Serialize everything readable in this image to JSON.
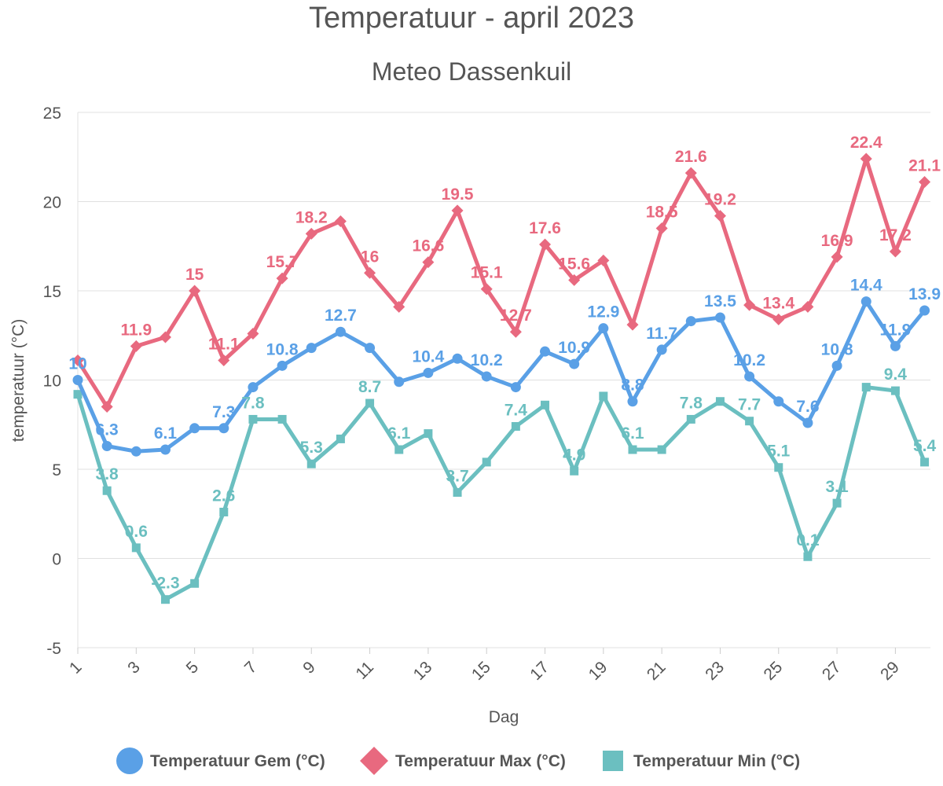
{
  "chart_data": {
    "type": "line",
    "title": "Temperatuur - april 2023",
    "subtitle": "Meteo Dassenkuil",
    "xlabel": "Dag",
    "ylabel": "temperatuur (°C)",
    "ylim": [
      -5,
      25
    ],
    "yticks": [
      "25",
      "20",
      "15",
      "10",
      "5",
      "0",
      "-5"
    ],
    "xticks": [
      "1",
      "3",
      "5",
      "7",
      "9",
      "11",
      "13",
      "15",
      "17",
      "19",
      "21",
      "23",
      "25",
      "27",
      "29"
    ],
    "x": [
      1,
      2,
      3,
      4,
      5,
      6,
      7,
      8,
      9,
      10,
      11,
      12,
      13,
      14,
      15,
      16,
      17,
      18,
      19,
      20,
      21,
      22,
      23,
      24,
      25,
      26,
      27,
      28,
      29,
      30
    ],
    "grid": true,
    "legend_position": "bottom",
    "series": [
      {
        "name": "Temperatuur Gem (°C)",
        "color": "#5aa0e6",
        "marker": "circle",
        "values": [
          10,
          6.3,
          6.0,
          6.1,
          7.3,
          7.3,
          9.6,
          10.8,
          11.8,
          12.7,
          11.8,
          9.9,
          10.4,
          11.2,
          10.2,
          9.6,
          11.6,
          10.9,
          12.9,
          8.8,
          11.7,
          13.3,
          13.5,
          10.2,
          8.8,
          7.6,
          10.8,
          14.4,
          11.9,
          13.9
        ],
        "labels": [
          "10",
          "6.3",
          "",
          "6.1",
          "",
          "7.3",
          "",
          "10.8",
          "",
          "12.7",
          "",
          "",
          "10.4",
          "",
          "10.2",
          "",
          "",
          "10.9",
          "12.9",
          "8.8",
          "11.7",
          "",
          "13.5",
          "10.2",
          "",
          "7.6",
          "10.8",
          "14.4",
          "11.9",
          "13.9"
        ]
      },
      {
        "name": "Temperatuur Max (°C)",
        "color": "#e8697f",
        "marker": "diamond",
        "values": [
          11.1,
          8.5,
          11.9,
          12.4,
          15.0,
          11.1,
          12.6,
          15.7,
          18.2,
          18.9,
          16.0,
          14.1,
          16.6,
          19.5,
          15.1,
          12.7,
          17.6,
          15.6,
          16.7,
          13.1,
          18.5,
          21.6,
          19.2,
          14.2,
          13.4,
          14.1,
          16.9,
          22.4,
          17.2,
          21.1
        ],
        "labels": [
          "",
          "",
          "11.9",
          "",
          "15",
          "11.1",
          "",
          "15.7",
          "18.2",
          "",
          "16",
          "",
          "16.6",
          "19.5",
          "15.1",
          "12.7",
          "17.6",
          "15.6",
          "",
          "",
          "18.5",
          "21.6",
          "19.2",
          "",
          "13.4",
          "",
          "16.9",
          "22.4",
          "17.2",
          "21.1"
        ]
      },
      {
        "name": "Temperatuur Min (°C)",
        "color": "#6bbfc0",
        "marker": "square",
        "values": [
          9.2,
          3.8,
          0.6,
          -2.3,
          -1.4,
          2.6,
          7.8,
          7.8,
          5.3,
          6.7,
          8.7,
          6.1,
          7.0,
          3.7,
          5.4,
          7.4,
          8.6,
          4.9,
          9.1,
          6.1,
          6.1,
          7.8,
          8.8,
          7.7,
          5.1,
          0.1,
          3.1,
          9.6,
          9.4,
          5.4
        ],
        "labels": [
          "",
          "3.8",
          "0.6",
          "-2.3",
          "",
          "2.6",
          "7.8",
          "",
          "5.3",
          "",
          "8.7",
          "6.1",
          "",
          "3.7",
          "",
          "7.4",
          "",
          "4.9",
          "",
          "6.1",
          "",
          "7.8",
          "",
          "7.7",
          "5.1",
          "0.1",
          "3.1",
          "",
          "9.4",
          "5.4"
        ]
      }
    ]
  }
}
